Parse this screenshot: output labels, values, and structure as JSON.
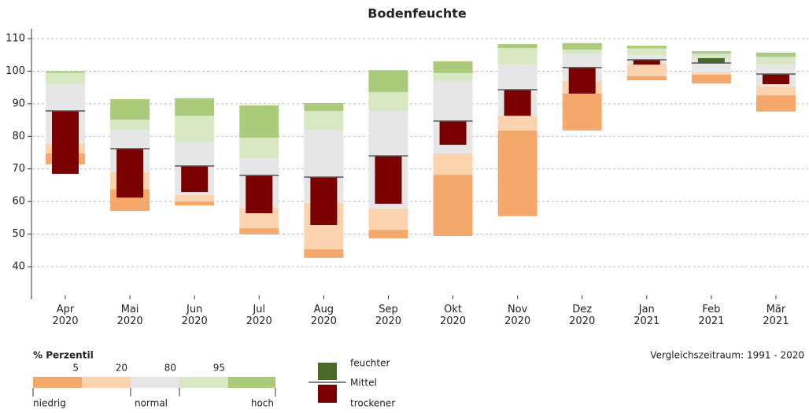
{
  "chart_data": {
    "type": "percentile_bar",
    "title": "Bodenfeuchte",
    "categories": [
      "Apr 2020",
      "Mai 2020",
      "Jun 2020",
      "Jul 2020",
      "Aug 2020",
      "Sep 2020",
      "Okt 2020",
      "Nov 2020",
      "Dez 2020",
      "Jan 2021",
      "Feb 2021",
      "Mär 2021"
    ],
    "min": [
      71.4,
      57.1,
      58.8,
      49.9,
      42.7,
      48.7,
      49.4,
      55.5,
      81.8,
      97.2,
      96.2,
      87.6
    ],
    "p5": [
      74.8,
      63.7,
      60.0,
      51.8,
      45.3,
      51.3,
      68.2,
      81.8,
      93.1,
      98.5,
      98.9,
      92.6
    ],
    "p20": [
      77.7,
      69.0,
      62.0,
      58.0,
      59.6,
      57.9,
      74.8,
      86.3,
      97.0,
      102.3,
      99.6,
      95.3
    ],
    "p80": [
      96.0,
      82.0,
      78.4,
      73.3,
      82.0,
      87.8,
      97.0,
      102.0,
      105.4,
      104.9,
      104.0,
      102.0
    ],
    "p95": [
      99.5,
      85.1,
      86.3,
      79.6,
      87.8,
      93.6,
      99.4,
      107.1,
      106.6,
      107.0,
      105.4,
      104.4
    ],
    "max": [
      100.0,
      91.4,
      91.7,
      89.5,
      90.2,
      100.3,
      103.0,
      108.3,
      108.6,
      107.8,
      106.1,
      105.7
    ],
    "mean": [
      87.8,
      76.2,
      70.9,
      68.0,
      67.5,
      74.0,
      84.7,
      94.3,
      101.1,
      103.5,
      102.5,
      99.1
    ],
    "current": [
      68.5,
      61.2,
      62.9,
      56.4,
      52.8,
      59.3,
      77.4,
      86.3,
      93.1,
      102.0,
      104.0,
      96.0
    ],
    "band_colors": [
      "#f5a86b",
      "#fbd3ae",
      "#e6e6e6",
      "#d8e8c2",
      "#a9cb7a"
    ],
    "mean_color": "#555555",
    "wetter_color": "#4a6a2a",
    "drier_color": "#7a0000",
    "ylim": [
      30,
      113
    ],
    "yticks": [
      40,
      50,
      60,
      70,
      80,
      90,
      100,
      110
    ],
    "grid": true,
    "legend": {
      "title": "% Perzentil",
      "ticks": [
        5,
        20,
        80,
        95
      ],
      "labels": [
        "niedrig",
        "normal",
        "hoch"
      ]
    },
    "anomaly_legend": {
      "wetter": "feuchter",
      "mean": "Mittel",
      "drier": "trockener"
    },
    "annotation": "Vergleichszeitraum: 1991 - 2020"
  }
}
